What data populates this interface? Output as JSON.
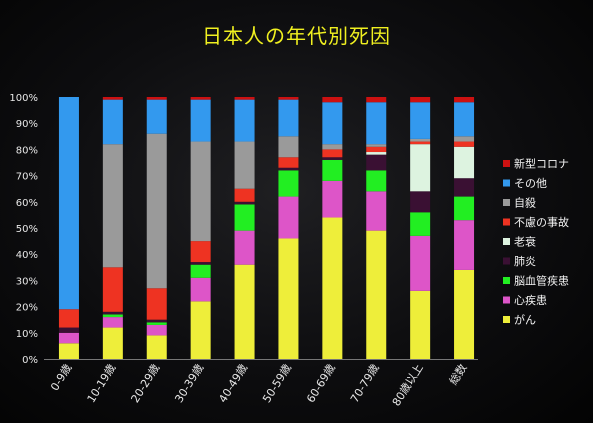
{
  "title": "日本人の年代別死因",
  "chart_data": {
    "type": "bar",
    "stacked": true,
    "title": "日本人の年代別死因",
    "xlabel": "",
    "ylabel": "",
    "ylim": [
      0,
      100
    ],
    "y_ticks": [
      "0%",
      "10%",
      "20%",
      "30%",
      "40%",
      "50%",
      "60%",
      "70%",
      "80%",
      "90%",
      "100%"
    ],
    "grid": false,
    "legend_position": "right",
    "categories": [
      "0-9歳",
      "10-19歳",
      "20-29歳",
      "30-39歳",
      "40-49歳",
      "50-59歳",
      "60-69歳",
      "70-79歳",
      "80歳以上",
      "総数"
    ],
    "series": [
      {
        "name": "がん",
        "color": "#eeee3a",
        "values": [
          6,
          12,
          9,
          22,
          36,
          46,
          54,
          49,
          26,
          34
        ]
      },
      {
        "name": "心疾患",
        "color": "#dd55c8",
        "values": [
          4,
          4,
          4,
          9,
          13,
          16,
          14,
          15,
          21,
          19
        ]
      },
      {
        "name": "脳血管疾患",
        "color": "#22ee22",
        "values": [
          0,
          1,
          1,
          5,
          10,
          10,
          8,
          8,
          9,
          9
        ]
      },
      {
        "name": "肺炎",
        "color": "#3a1033",
        "values": [
          2,
          1,
          1,
          1,
          1,
          1,
          1,
          6,
          8,
          7
        ]
      },
      {
        "name": "老衰",
        "color": "#ddf3e0",
        "values": [
          0,
          0,
          0,
          0,
          0,
          0,
          0,
          1,
          18,
          12
        ]
      },
      {
        "name": "不慮の事故",
        "color": "#ee3322",
        "values": [
          7,
          17,
          12,
          8,
          5,
          4,
          3,
          2,
          1,
          2
        ]
      },
      {
        "name": "自殺",
        "color": "#9a9a9a",
        "values": [
          0,
          47,
          59,
          38,
          18,
          8,
          2,
          1,
          1,
          2
        ]
      },
      {
        "name": "その他",
        "color": "#3399ee",
        "values": [
          81,
          17,
          13,
          16,
          16,
          14,
          16,
          16,
          14,
          13
        ]
      },
      {
        "name": "新型コロナ",
        "color": "#cc1111",
        "values": [
          0,
          1,
          1,
          1,
          1,
          1,
          2,
          2,
          2,
          2
        ]
      }
    ]
  }
}
